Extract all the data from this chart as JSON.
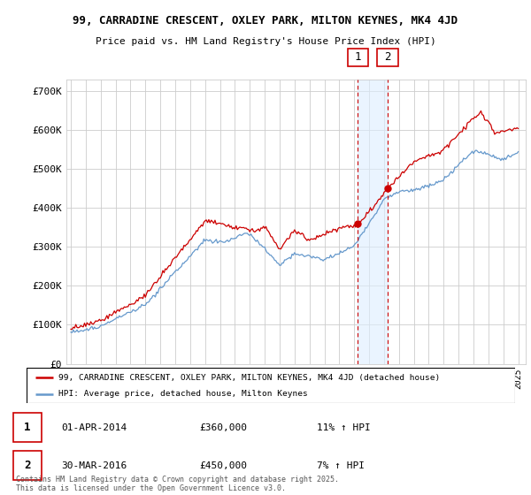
{
  "title": "99, CARRADINE CRESCENT, OXLEY PARK, MILTON KEYNES, MK4 4JD",
  "subtitle": "Price paid vs. HM Land Registry's House Price Index (HPI)",
  "red_label": "99, CARRADINE CRESCENT, OXLEY PARK, MILTON KEYNES, MK4 4JD (detached house)",
  "blue_label": "HPI: Average price, detached house, Milton Keynes",
  "annotation1": {
    "num": "1",
    "date": "01-APR-2014",
    "price": "£360,000",
    "hpi": "11% ↑ HPI",
    "x_year": 2014.25,
    "y_val": 360000
  },
  "annotation2": {
    "num": "2",
    "date": "30-MAR-2016",
    "price": "£450,000",
    "hpi": "7% ↑ HPI",
    "x_year": 2016.25,
    "y_val": 450000
  },
  "footer": "Contains HM Land Registry data © Crown copyright and database right 2025.\nThis data is licensed under the Open Government Licence v3.0.",
  "ylim": [
    0,
    730000
  ],
  "yticks": [
    0,
    100000,
    200000,
    300000,
    400000,
    500000,
    600000,
    700000
  ],
  "ytick_labels": [
    "£0",
    "£100K",
    "£200K",
    "£300K",
    "£400K",
    "£500K",
    "£600K",
    "£700K"
  ],
  "xlim_left": 1994.7,
  "xlim_right": 2025.5,
  "red_color": "#cc0000",
  "blue_color": "#6699cc",
  "bg_color": "#ffffff",
  "grid_color": "#cccccc",
  "span_color": "#ddeeff"
}
